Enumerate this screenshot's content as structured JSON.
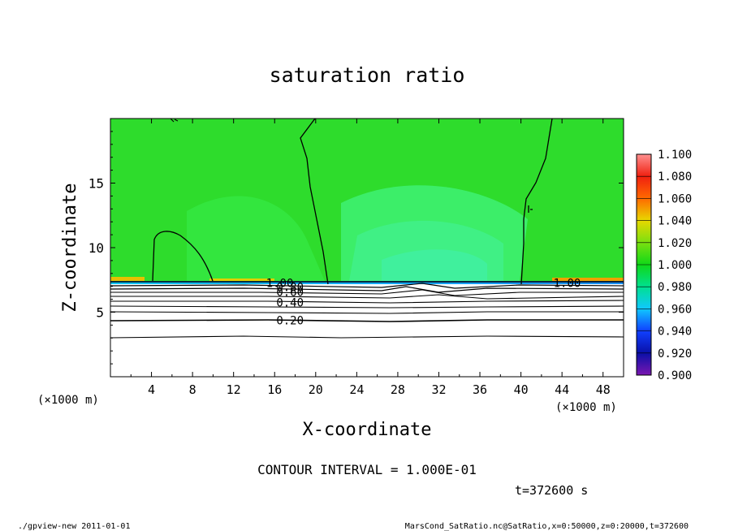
{
  "chart_data": {
    "type": "contour",
    "title": "saturation ratio",
    "xlabel": "X-coordinate",
    "ylabel": "Z-coordinate",
    "x_unit_note": "(×1000 m)",
    "y_unit_note": "(×1000 m)",
    "xlim": [
      0,
      50
    ],
    "ylim": [
      0,
      20
    ],
    "x_ticks": [
      4,
      8,
      12,
      16,
      20,
      24,
      28,
      32,
      36,
      40,
      44,
      48
    ],
    "y_ticks": [
      5,
      10,
      15
    ],
    "contour_interval_text": "CONTOUR INTERVAL = 1.000E-01",
    "contour_labels": [
      {
        "text": "1.00",
        "x": 16.5,
        "z": 7.2
      },
      {
        "text": "0.80",
        "x": 17.5,
        "z": 6.9
      },
      {
        "text": "0.60",
        "x": 17.5,
        "z": 6.5
      },
      {
        "text": "0.40",
        "x": 17.5,
        "z": 5.7
      },
      {
        "text": "0.20",
        "x": 17.5,
        "z": 4.3
      },
      {
        "text": "1.00",
        "x": 44.5,
        "z": 7.2
      }
    ],
    "colorbar": {
      "levels": [
        0.9,
        0.92,
        0.94,
        0.96,
        0.98,
        1.0,
        1.02,
        1.04,
        1.06,
        1.08,
        1.1
      ],
      "labels": [
        "0.900",
        "0.920",
        "0.940",
        "0.960",
        "0.980",
        "1.000",
        "1.020",
        "1.040",
        "1.060",
        "1.080",
        "1.100"
      ],
      "colors": [
        "#7a16b0",
        "#0a10a8",
        "#1040ff",
        "#10c8ff",
        "#00e090",
        "#10d818",
        "#7ae010",
        "#e8d800",
        "#ff6a00",
        "#f02010",
        "#ff9090"
      ]
    },
    "time_text": "t=372600 s"
  },
  "footer": {
    "left": "./gpview-new  2011-01-01",
    "right": "MarsCond_SatRatio.nc@SatRatio,x=0:50000,z=0:20000,t=372600"
  },
  "colors": {
    "background_field": "#2ee02e",
    "lighter_field": "#40f070",
    "low_layer": "#ffffff"
  }
}
